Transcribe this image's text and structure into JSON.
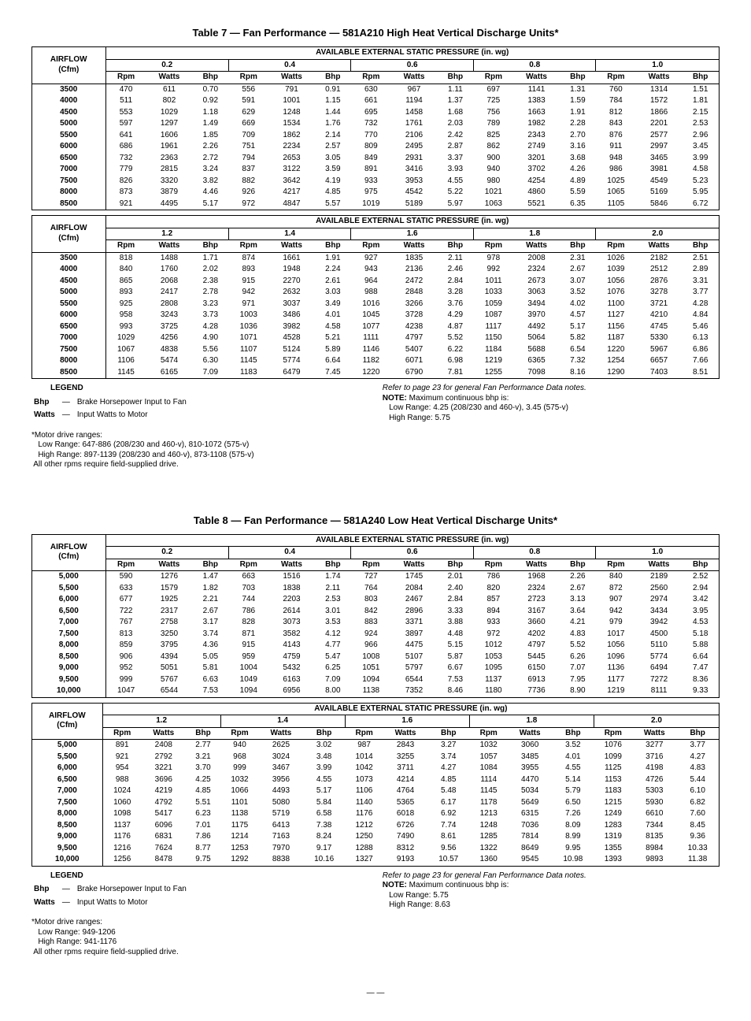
{
  "page": {
    "foot": "—  —"
  },
  "tables": [
    {
      "title": "Table 7 — Fan Performance — 581A210 High Heat Vertical Discharge Units*",
      "airflow_label": "AIRFLOW\n(Cfm)",
      "pressure_header": "AVAILABLE EXTERNAL STATIC PRESSURE (in. wg)",
      "sub_cols": [
        "Rpm",
        "Watts",
        "Bhp"
      ],
      "blocks": [
        {
          "pressures": [
            "0.2",
            "0.4",
            "0.6",
            "0.8",
            "1.0"
          ],
          "rows": [
            [
              "3500",
              "470",
              "611",
              "0.70",
              "556",
              "791",
              "0.91",
              "630",
              "967",
              "1.11",
              "697",
              "1141",
              "1.31",
              "760",
              "1314",
              "1.51"
            ],
            [
              "4000",
              "511",
              "802",
              "0.92",
              "591",
              "1001",
              "1.15",
              "661",
              "1194",
              "1.37",
              "725",
              "1383",
              "1.59",
              "784",
              "1572",
              "1.81"
            ],
            [
              "4500",
              "553",
              "1029",
              "1.18",
              "629",
              "1248",
              "1.44",
              "695",
              "1458",
              "1.68",
              "756",
              "1663",
              "1.91",
              "812",
              "1866",
              "2.15"
            ],
            [
              "5000",
              "597",
              "1297",
              "1.49",
              "669",
              "1534",
              "1.76",
              "732",
              "1761",
              "2.03",
              "789",
              "1982",
              "2.28",
              "843",
              "2201",
              "2.53"
            ],
            [
              "5500",
              "641",
              "1606",
              "1.85",
              "709",
              "1862",
              "2.14",
              "770",
              "2106",
              "2.42",
              "825",
              "2343",
              "2.70",
              "876",
              "2577",
              "2.96"
            ],
            [
              "6000",
              "686",
              "1961",
              "2.26",
              "751",
              "2234",
              "2.57",
              "809",
              "2495",
              "2.87",
              "862",
              "2749",
              "3.16",
              "911",
              "2997",
              "3.45"
            ],
            [
              "6500",
              "732",
              "2363",
              "2.72",
              "794",
              "2653",
              "3.05",
              "849",
              "2931",
              "3.37",
              "900",
              "3201",
              "3.68",
              "948",
              "3465",
              "3.99"
            ],
            [
              "7000",
              "779",
              "2815",
              "3.24",
              "837",
              "3122",
              "3.59",
              "891",
              "3416",
              "3.93",
              "940",
              "3702",
              "4.26",
              "986",
              "3981",
              "4.58"
            ],
            [
              "7500",
              "826",
              "3320",
              "3.82",
              "882",
              "3642",
              "4.19",
              "933",
              "3953",
              "4.55",
              "980",
              "4254",
              "4.89",
              "1025",
              "4549",
              "5.23"
            ],
            [
              "8000",
              "873",
              "3879",
              "4.46",
              "926",
              "4217",
              "4.85",
              "975",
              "4542",
              "5.22",
              "1021",
              "4860",
              "5.59",
              "1065",
              "5169",
              "5.95"
            ],
            [
              "8500",
              "921",
              "4495",
              "5.17",
              "972",
              "4847",
              "5.57",
              "1019",
              "5189",
              "5.97",
              "1063",
              "5521",
              "6.35",
              "1105",
              "5846",
              "6.72"
            ]
          ]
        },
        {
          "pressures": [
            "1.2",
            "1.4",
            "1.6",
            "1.8",
            "2.0"
          ],
          "rows": [
            [
              "3500",
              "818",
              "1488",
              "1.71",
              "874",
              "1661",
              "1.91",
              "927",
              "1835",
              "2.11",
              "978",
              "2008",
              "2.31",
              "1026",
              "2182",
              "2.51"
            ],
            [
              "4000",
              "840",
              "1760",
              "2.02",
              "893",
              "1948",
              "2.24",
              "943",
              "2136",
              "2.46",
              "992",
              "2324",
              "2.67",
              "1039",
              "2512",
              "2.89"
            ],
            [
              "4500",
              "865",
              "2068",
              "2.38",
              "915",
              "2270",
              "2.61",
              "964",
              "2472",
              "2.84",
              "1011",
              "2673",
              "3.07",
              "1056",
              "2876",
              "3.31"
            ],
            [
              "5000",
              "893",
              "2417",
              "2.78",
              "942",
              "2632",
              "3.03",
              "988",
              "2848",
              "3.28",
              "1033",
              "3063",
              "3.52",
              "1076",
              "3278",
              "3.77"
            ],
            [
              "5500",
              "925",
              "2808",
              "3.23",
              "971",
              "3037",
              "3.49",
              "1016",
              "3266",
              "3.76",
              "1059",
              "3494",
              "4.02",
              "1100",
              "3721",
              "4.28"
            ],
            [
              "6000",
              "958",
              "3243",
              "3.73",
              "1003",
              "3486",
              "4.01",
              "1045",
              "3728",
              "4.29",
              "1087",
              "3970",
              "4.57",
              "1127",
              "4210",
              "4.84"
            ],
            [
              "6500",
              "993",
              "3725",
              "4.28",
              "1036",
              "3982",
              "4.58",
              "1077",
              "4238",
              "4.87",
              "1117",
              "4492",
              "5.17",
              "1156",
              "4745",
              "5.46"
            ],
            [
              "7000",
              "1029",
              "4256",
              "4.90",
              "1071",
              "4528",
              "5.21",
              "1111",
              "4797",
              "5.52",
              "1150",
              "5064",
              "5.82",
              "1187",
              "5330",
              "6.13"
            ],
            [
              "7500",
              "1067",
              "4838",
              "5.56",
              "1107",
              "5124",
              "5.89",
              "1146",
              "5407",
              "6.22",
              "1184",
              "5688",
              "6.54",
              "1220",
              "5967",
              "6.86"
            ],
            [
              "8000",
              "1106",
              "5474",
              "6.30",
              "1145",
              "5774",
              "6.64",
              "1182",
              "6071",
              "6.98",
              "1219",
              "6365",
              "7.32",
              "1254",
              "6657",
              "7.66"
            ],
            [
              "8500",
              "1145",
              "6165",
              "7.09",
              "1183",
              "6479",
              "7.45",
              "1220",
              "6790",
              "7.81",
              "1255",
              "7098",
              "8.16",
              "1290",
              "7403",
              "8.51"
            ]
          ]
        }
      ],
      "legend": {
        "heading": "LEGEND",
        "lines": [
          {
            "k": "Bhp",
            "d": "—",
            "v": "Brake Horsepower Input to Fan"
          },
          {
            "k": "Watts",
            "d": "—",
            "v": "Input Watts to Motor"
          }
        ],
        "footnote": "*Motor drive ranges:\n   Low Range: 647-886 (208/230 and 460-v), 810-1072 (575-v)\n   High Range: 897-1139 (208/230 and 460-v), 873-1108 (575-v)\n All other rpms require field-supplied drive."
      },
      "notes": {
        "refer": "Refer to page 23 for general Fan Performance Data notes.",
        "note_label": "NOTE:",
        "note_body": "Maximum continuous bhp is:\n   Low Range: 4.25 (208/230 and 460-v), 3.45 (575-v)\n   High Range: 5.75"
      }
    },
    {
      "title": "Table 8 — Fan Performance — 581A240 Low Heat Vertical Discharge Units*",
      "airflow_label": "AIRFLOW\n(Cfm)",
      "pressure_header": "AVAILABLE EXTERNAL STATIC PRESSURE (in. wg)",
      "sub_cols": [
        "Rpm",
        "Watts",
        "Bhp"
      ],
      "blocks": [
        {
          "pressures": [
            "0.2",
            "0.4",
            "0.6",
            "0.8",
            "1.0"
          ],
          "rows": [
            [
              "5,000",
              "590",
              "1276",
              "1.47",
              "663",
              "1516",
              "1.74",
              "727",
              "1745",
              "2.01",
              "786",
              "1968",
              "2.26",
              "840",
              "2189",
              "2.52"
            ],
            [
              "5,500",
              "633",
              "1579",
              "1.82",
              "703",
              "1838",
              "2.11",
              "764",
              "2084",
              "2.40",
              "820",
              "2324",
              "2.67",
              "872",
              "2560",
              "2.94"
            ],
            [
              "6,000",
              "677",
              "1925",
              "2.21",
              "744",
              "2203",
              "2.53",
              "803",
              "2467",
              "2.84",
              "857",
              "2723",
              "3.13",
              "907",
              "2974",
              "3.42"
            ],
            [
              "6,500",
              "722",
              "2317",
              "2.67",
              "786",
              "2614",
              "3.01",
              "842",
              "2896",
              "3.33",
              "894",
              "3167",
              "3.64",
              "942",
              "3434",
              "3.95"
            ],
            [
              "7,000",
              "767",
              "2758",
              "3.17",
              "828",
              "3073",
              "3.53",
              "883",
              "3371",
              "3.88",
              "933",
              "3660",
              "4.21",
              "979",
              "3942",
              "4.53"
            ],
            [
              "7,500",
              "813",
              "3250",
              "3.74",
              "871",
              "3582",
              "4.12",
              "924",
              "3897",
              "4.48",
              "972",
              "4202",
              "4.83",
              "1017",
              "4500",
              "5.18"
            ],
            [
              "8,000",
              "859",
              "3795",
              "4.36",
              "915",
              "4143",
              "4.77",
              "966",
              "4475",
              "5.15",
              "1012",
              "4797",
              "5.52",
              "1056",
              "5110",
              "5.88"
            ],
            [
              "8,500",
              "906",
              "4394",
              "5.05",
              "959",
              "4759",
              "5.47",
              "1008",
              "5107",
              "5.87",
              "1053",
              "5445",
              "6.26",
              "1096",
              "5774",
              "6.64"
            ],
            [
              "9,000",
              "952",
              "5051",
              "5.81",
              "1004",
              "5432",
              "6.25",
              "1051",
              "5797",
              "6.67",
              "1095",
              "6150",
              "7.07",
              "1136",
              "6494",
              "7.47"
            ],
            [
              "9,500",
              "999",
              "5767",
              "6.63",
              "1049",
              "6163",
              "7.09",
              "1094",
              "6544",
              "7.53",
              "1137",
              "6913",
              "7.95",
              "1177",
              "7272",
              "8.36"
            ],
            [
              "10,000",
              "1047",
              "6544",
              "7.53",
              "1094",
              "6956",
              "8.00",
              "1138",
              "7352",
              "8.46",
              "1180",
              "7736",
              "8.90",
              "1219",
              "8111",
              "9.33"
            ]
          ]
        },
        {
          "pressures": [
            "1.2",
            "1.4",
            "1.6",
            "1.8",
            "2.0"
          ],
          "rows": [
            [
              "5,000",
              "891",
              "2408",
              "2.77",
              "940",
              "2625",
              "3.02",
              "987",
              "2843",
              "3.27",
              "1032",
              "3060",
              "3.52",
              "1076",
              "3277",
              "3.77"
            ],
            [
              "5,500",
              "921",
              "2792",
              "3.21",
              "968",
              "3024",
              "3.48",
              "1014",
              "3255",
              "3.74",
              "1057",
              "3485",
              "4.01",
              "1099",
              "3716",
              "4.27"
            ],
            [
              "6,000",
              "954",
              "3221",
              "3.70",
              "999",
              "3467",
              "3.99",
              "1042",
              "3711",
              "4.27",
              "1084",
              "3955",
              "4.55",
              "1125",
              "4198",
              "4.83"
            ],
            [
              "6,500",
              "988",
              "3696",
              "4.25",
              "1032",
              "3956",
              "4.55",
              "1073",
              "4214",
              "4.85",
              "1114",
              "4470",
              "5.14",
              "1153",
              "4726",
              "5.44"
            ],
            [
              "7,000",
              "1024",
              "4219",
              "4.85",
              "1066",
              "4493",
              "5.17",
              "1106",
              "4764",
              "5.48",
              "1145",
              "5034",
              "5.79",
              "1183",
              "5303",
              "6.10"
            ],
            [
              "7,500",
              "1060",
              "4792",
              "5.51",
              "1101",
              "5080",
              "5.84",
              "1140",
              "5365",
              "6.17",
              "1178",
              "5649",
              "6.50",
              "1215",
              "5930",
              "6.82"
            ],
            [
              "8,000",
              "1098",
              "5417",
              "6.23",
              "1138",
              "5719",
              "6.58",
              "1176",
              "6018",
              "6.92",
              "1213",
              "6315",
              "7.26",
              "1249",
              "6610",
              "7.60"
            ],
            [
              "8,500",
              "1137",
              "6096",
              "7.01",
              "1175",
              "6413",
              "7.38",
              "1212",
              "6726",
              "7.74",
              "1248",
              "7036",
              "8.09",
              "1283",
              "7344",
              "8.45"
            ],
            [
              "9,000",
              "1176",
              "6831",
              "7.86",
              "1214",
              "7163",
              "8.24",
              "1250",
              "7490",
              "8.61",
              "1285",
              "7814",
              "8.99",
              "1319",
              "8135",
              "9.36"
            ],
            [
              "9,500",
              "1216",
              "7624",
              "8.77",
              "1253",
              "7970",
              "9.17",
              "1288",
              "8312",
              "9.56",
              "1322",
              "8649",
              "9.95",
              "1355",
              "8984",
              "10.33"
            ],
            [
              "10,000",
              "1256",
              "8478",
              "9.75",
              "1292",
              "8838",
              "10.16",
              "1327",
              "9193",
              "10.57",
              "1360",
              "9545",
              "10.98",
              "1393",
              "9893",
              "11.38"
            ]
          ]
        }
      ],
      "legend": {
        "heading": "LEGEND",
        "lines": [
          {
            "k": "Bhp",
            "d": "—",
            "v": "Brake Horsepower Input to Fan"
          },
          {
            "k": "Watts",
            "d": "—",
            "v": "Input Watts to Motor"
          }
        ],
        "footnote": "*Motor drive ranges:\n   Low Range: 949-1206\n   High Range: 941-1176\n All other rpms require field-supplied drive."
      },
      "notes": {
        "refer": "Refer to page 23 for general Fan Performance Data notes.",
        "note_label": "NOTE:",
        "note_body": "Maximum continuous bhp is:\n   Low Range: 5.75\n   High Range: 8.63"
      }
    }
  ]
}
